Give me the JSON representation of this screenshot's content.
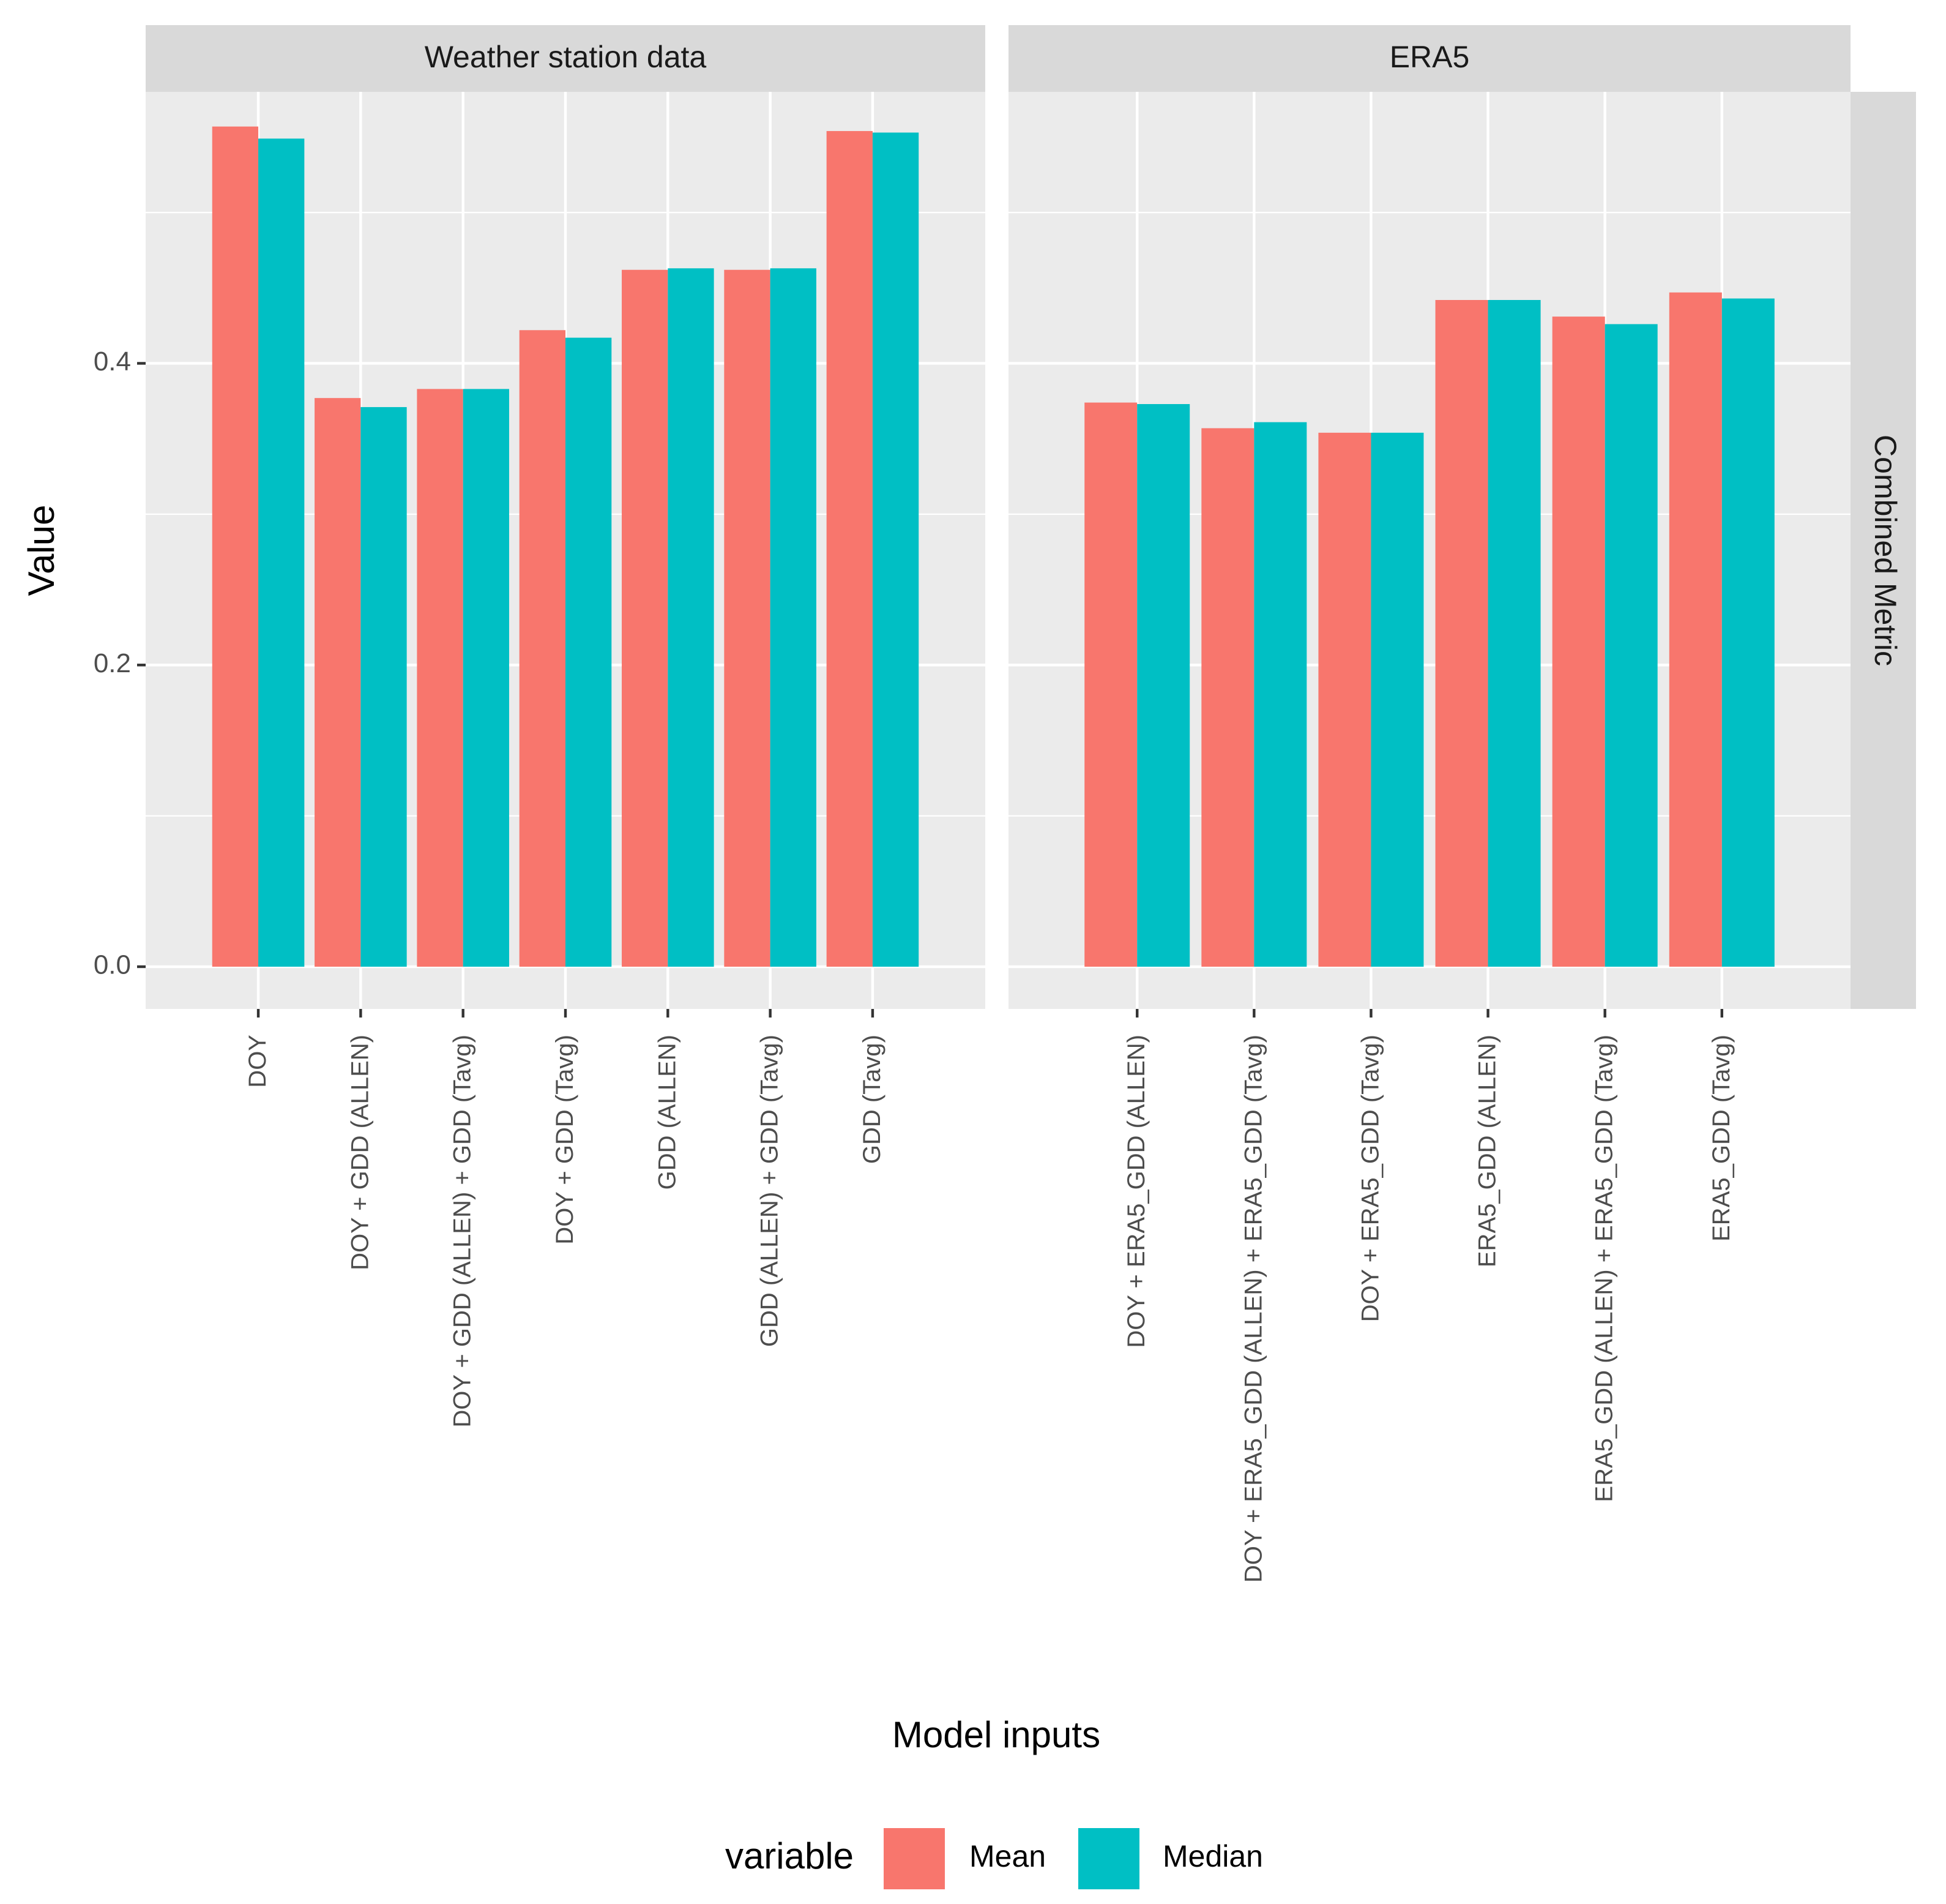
{
  "colors": {
    "mean": "#F8766D",
    "median": "#00BFC4",
    "panel_bg": "#EBEBEB",
    "strip_bg": "#D9D9D9",
    "grid": "#FFFFFF"
  },
  "chart_data": {
    "type": "bar",
    "title": "",
    "xlabel": "Model inputs",
    "ylabel": "Value",
    "ylim": [
      -0.028,
      0.58
    ],
    "yticks": [
      0.0,
      0.2,
      0.4
    ],
    "ytick_labels": [
      "0.0",
      "0.2",
      "0.4"
    ],
    "row_strip": "Combined Metric",
    "legend": {
      "title": "variable",
      "position": "bottom",
      "entries": [
        "Mean",
        "Median"
      ]
    },
    "panels": [
      {
        "strip": "Weather station data",
        "categories": [
          "DOY",
          "DOY + GDD (ALLEN)",
          "DOY + GDD (ALLEN) + GDD (Tavg)",
          "DOY + GDD (Tavg)",
          "GDD (ALLEN)",
          "GDD (ALLEN) + GDD (Tavg)",
          "GDD (Tavg)"
        ],
        "series": [
          {
            "name": "Mean",
            "values": [
              0.557,
              0.377,
              0.383,
              0.422,
              0.462,
              0.462,
              0.554
            ]
          },
          {
            "name": "Median",
            "values": [
              0.549,
              0.371,
              0.383,
              0.417,
              0.463,
              0.463,
              0.553
            ]
          }
        ]
      },
      {
        "strip": "ERA5",
        "categories": [
          "DOY + ERA5_GDD (ALLEN)",
          "DOY + ERA5_GDD (ALLEN) + ERA5_GDD (Tavg)",
          "DOY + ERA5_GDD (Tavg)",
          "ERA5_GDD (ALLEN)",
          "ERA5_GDD (ALLEN) + ERA5_GDD (Tavg)",
          "ERA5_GDD (Tavg)"
        ],
        "series": [
          {
            "name": "Mean",
            "values": [
              0.374,
              0.357,
              0.354,
              0.442,
              0.431,
              0.447
            ]
          },
          {
            "name": "Median",
            "values": [
              0.373,
              0.361,
              0.354,
              0.442,
              0.426,
              0.443
            ]
          }
        ]
      }
    ]
  }
}
